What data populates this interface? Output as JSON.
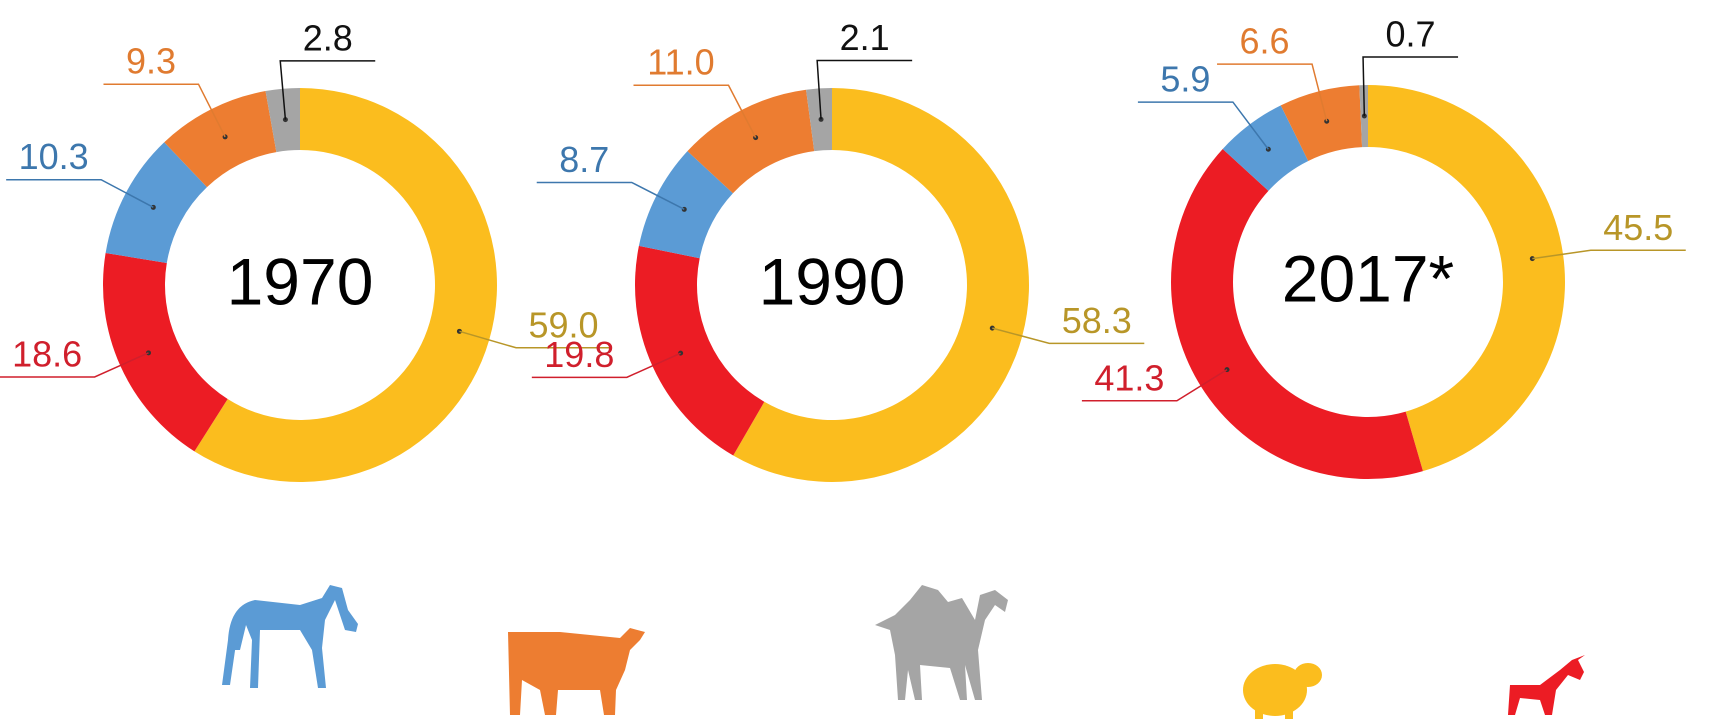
{
  "chart_data": [
    {
      "type": "donut",
      "title": "1970",
      "values": [
        59.0,
        18.6,
        10.3,
        9.3,
        2.8
      ],
      "value_labels": [
        "59.0",
        "18.6",
        "10.3",
        "9.3",
        "2.8"
      ],
      "colors": [
        "#fbbd1e",
        "#ec1c24",
        "#5b9bd5",
        "#ed7d31",
        "#a5a5a5"
      ],
      "label_colors": [
        "#b89628",
        "#d01f2c",
        "#3d77ad",
        "#e07b30",
        "#111111"
      ]
    },
    {
      "type": "donut",
      "title": "1990",
      "values": [
        58.3,
        19.8,
        8.7,
        11.0,
        2.1
      ],
      "value_labels": [
        "58.3",
        "19.8",
        "8.7",
        "11.0",
        "2.1"
      ],
      "colors": [
        "#fbbd1e",
        "#ec1c24",
        "#5b9bd5",
        "#ed7d31",
        "#a5a5a5"
      ],
      "label_colors": [
        "#b89628",
        "#d01f2c",
        "#3d77ad",
        "#e07b30",
        "#111111"
      ]
    },
    {
      "type": "donut",
      "title": "2017*",
      "values": [
        45.5,
        41.3,
        5.9,
        6.6,
        0.7
      ],
      "value_labels": [
        "45.5",
        "41.3",
        "5.9",
        "6.6",
        "0.7"
      ],
      "colors": [
        "#fbbd1e",
        "#ec1c24",
        "#5b9bd5",
        "#ed7d31",
        "#a5a5a5"
      ],
      "label_colors": [
        "#b89628",
        "#d01f2c",
        "#3d77ad",
        "#e07b30",
        "#111111"
      ]
    }
  ]
}
